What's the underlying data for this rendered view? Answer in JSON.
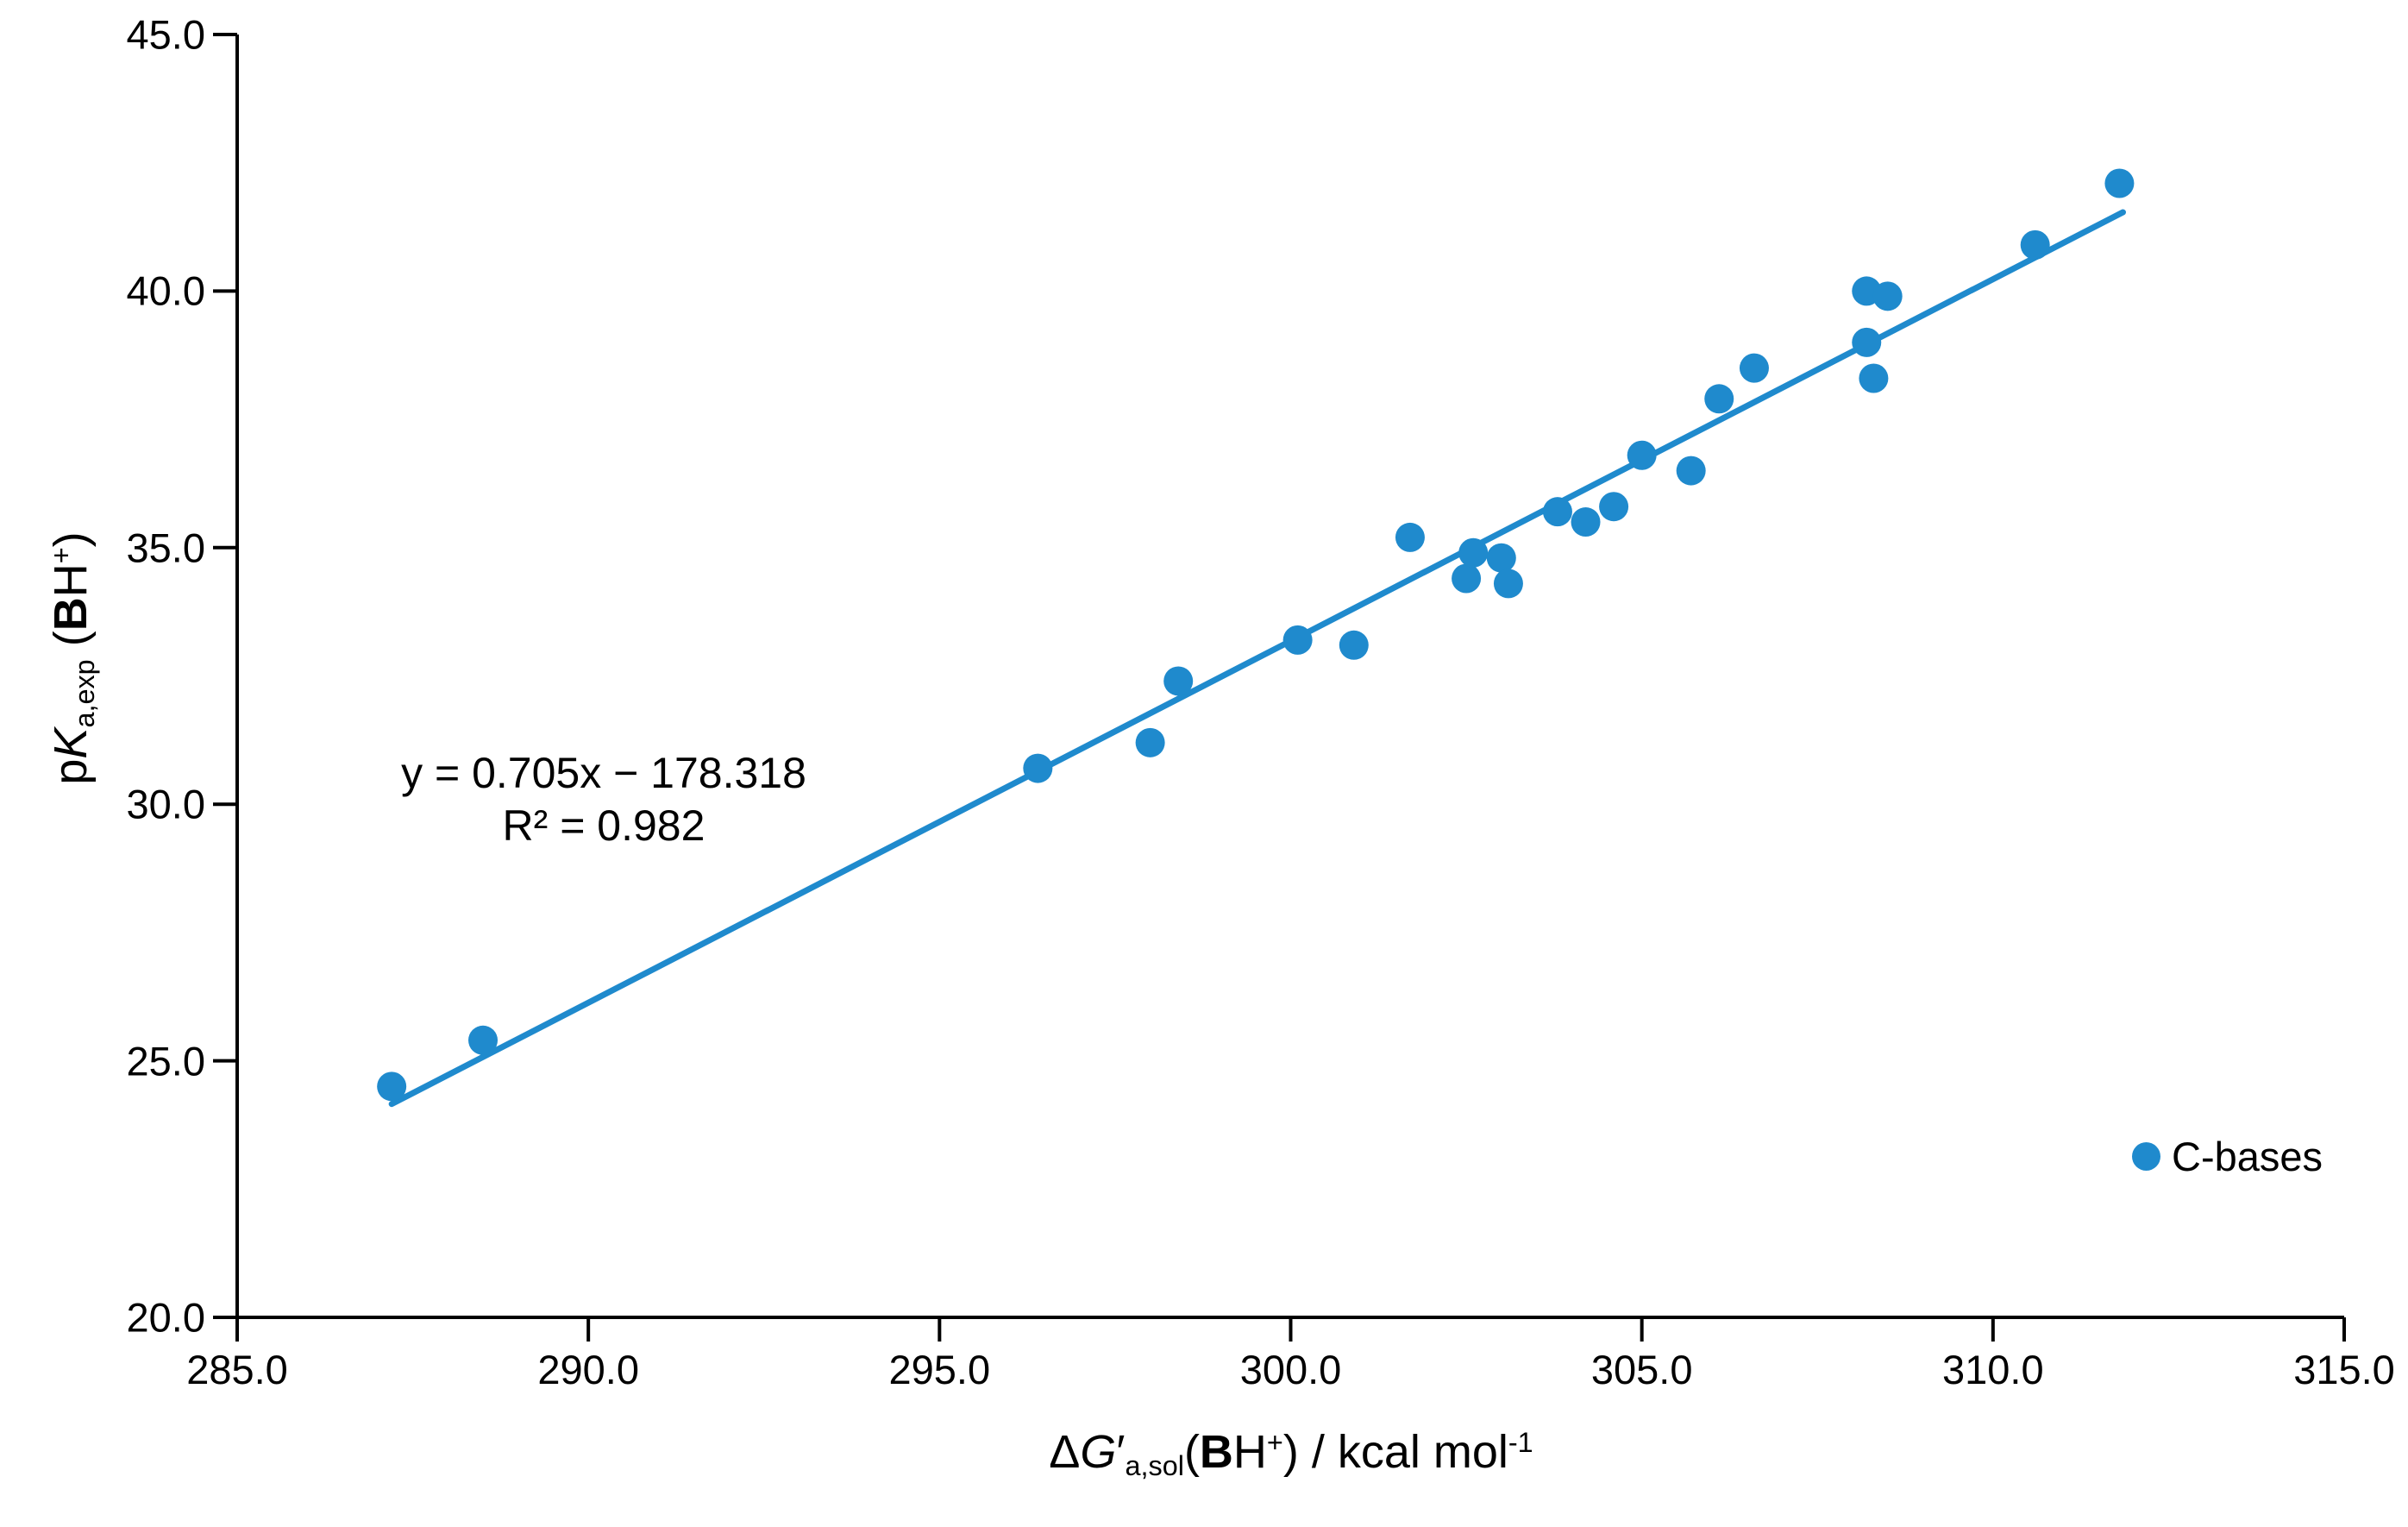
{
  "chart_data": {
    "type": "scatter",
    "title": "",
    "grid": false,
    "background": "#ffffff",
    "axis_color": "#000000",
    "x_axis": {
      "min": 285.0,
      "max": 315.0,
      "tick_step": 5.0,
      "tick_labels": [
        "285.0",
        "290.0",
        "295.0",
        "300.0",
        "305.0",
        "310.0",
        "315.0"
      ],
      "title": {
        "delta": "Δ",
        "var": "G",
        "prime": "′",
        "sub": "a,sol",
        "open": "(",
        "bold": "B",
        "base": "H",
        "sup": "+",
        "close": ")",
        "units": " / kcal mol",
        "units_exp": "-1"
      }
    },
    "y_axis": {
      "min": 20.0,
      "max": 45.0,
      "tick_step": 5.0,
      "tick_labels": [
        "20.0",
        "25.0",
        "30.0",
        "35.0",
        "40.0",
        "45.0"
      ],
      "title": {
        "pre": "p",
        "var": "K",
        "sub": "a,exp",
        "open": " (",
        "bold": "B",
        "base": "H",
        "sup": "+",
        "close": ")"
      }
    },
    "series": [
      {
        "name": "C-bases",
        "color": "#1f8acd",
        "marker": "circle",
        "points": [
          [
            287.2,
            24.5
          ],
          [
            288.5,
            25.4
          ],
          [
            296.4,
            30.7
          ],
          [
            298.0,
            31.2
          ],
          [
            298.4,
            32.4
          ],
          [
            300.1,
            33.2
          ],
          [
            300.9,
            33.1
          ],
          [
            301.7,
            35.2
          ],
          [
            302.5,
            34.4
          ],
          [
            302.6,
            34.9
          ],
          [
            303.0,
            34.8
          ],
          [
            303.1,
            34.3
          ],
          [
            303.8,
            35.7
          ],
          [
            304.2,
            35.5
          ],
          [
            304.6,
            35.8
          ],
          [
            305.0,
            36.8
          ],
          [
            305.7,
            36.5
          ],
          [
            306.1,
            37.9
          ],
          [
            306.6,
            38.5
          ],
          [
            308.2,
            39.0
          ],
          [
            308.2,
            40.0
          ],
          [
            308.3,
            38.3
          ],
          [
            308.5,
            39.9
          ],
          [
            310.6,
            40.9
          ],
          [
            311.8,
            42.1
          ]
        ]
      }
    ],
    "trendline": {
      "slope": 0.705,
      "intercept": -178.318,
      "x_start": 287.2,
      "x_end": 311.85,
      "color": "#1f8acd",
      "equation_line1": "y = 0.705x − 178.318",
      "equation_line2": "R² = 0.982"
    },
    "legend": {
      "label": "C-bases",
      "marker_color": "#1f8acd",
      "position": "bottom-right"
    }
  }
}
